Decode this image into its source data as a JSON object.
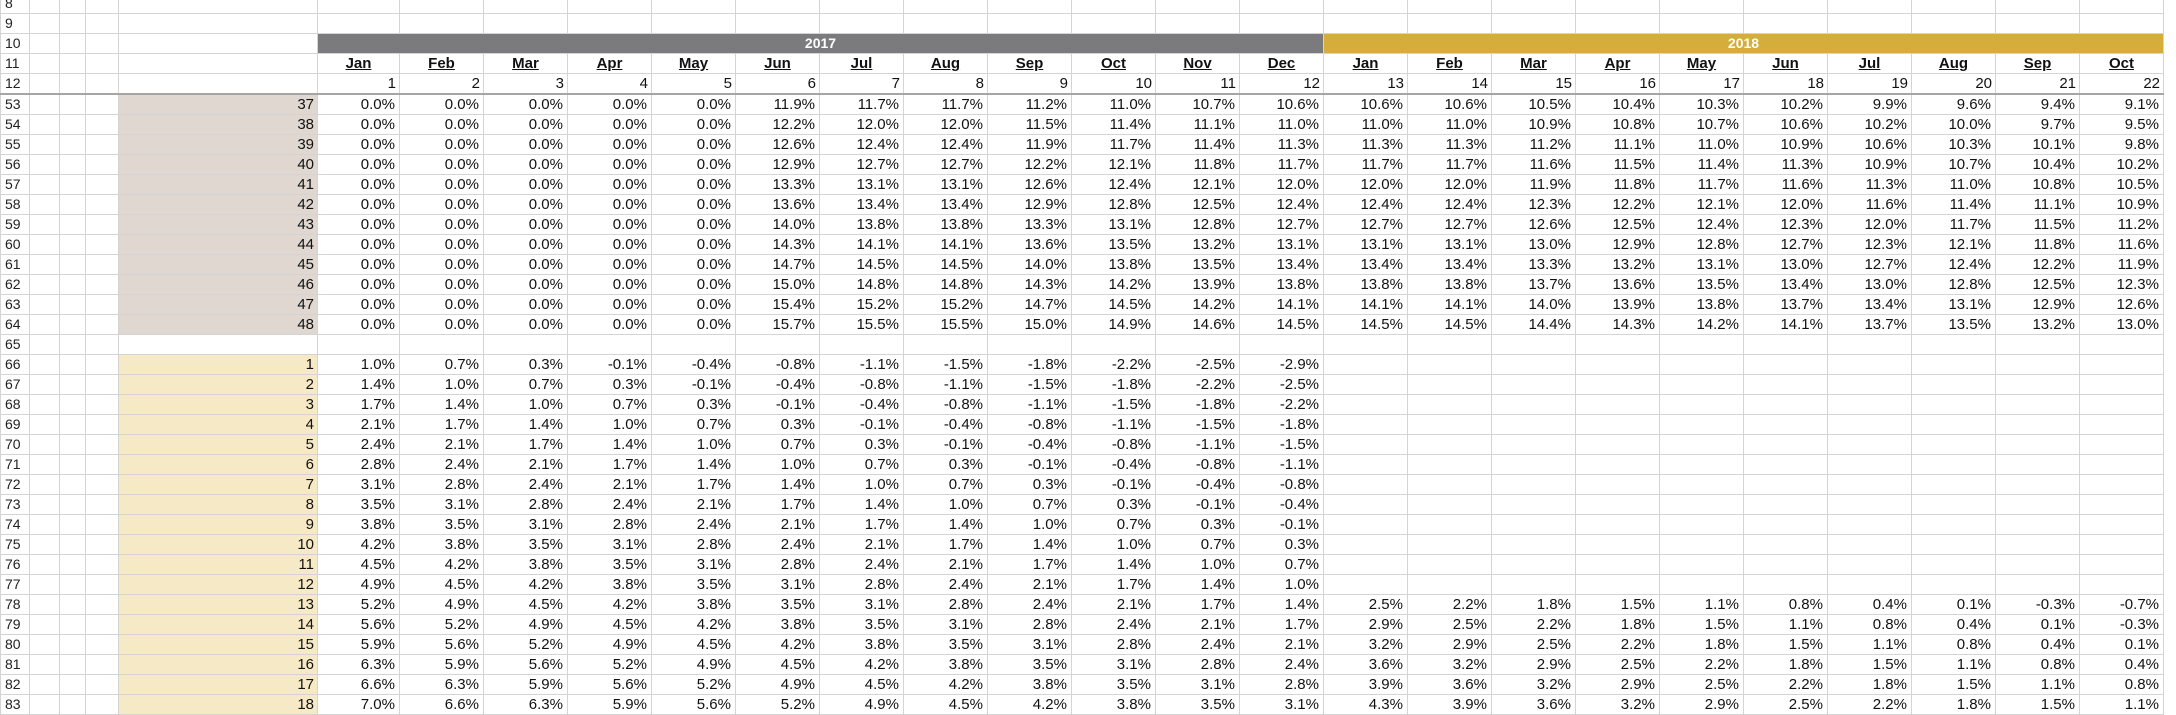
{
  "theme": {
    "header_2017": "#7b7b7d",
    "header_2018": "#d5ad3b",
    "band_a": "#e0d8d0",
    "band_b": "#f6eac6"
  },
  "row_numbers": {
    "top": [
      "8",
      "9",
      "10",
      "11",
      "12"
    ],
    "body": [
      "53",
      "54",
      "55",
      "56",
      "57",
      "58",
      "59",
      "60",
      "61",
      "62",
      "63",
      "64",
      "65",
      "66",
      "67",
      "68",
      "69",
      "70",
      "71",
      "72",
      "73",
      "74",
      "75",
      "76",
      "77",
      "78",
      "79",
      "80",
      "81",
      "82",
      "83"
    ]
  },
  "years": [
    "2017",
    "2018"
  ],
  "months": [
    "Jan",
    "Feb",
    "Mar",
    "Apr",
    "May",
    "Jun",
    "Jul",
    "Aug",
    "Sep",
    "Oct",
    "Nov",
    "Dec",
    "Jan",
    "Feb",
    "Mar",
    "Apr",
    "May",
    "Jun",
    "Jul",
    "Aug",
    "Sep",
    "Oct"
  ],
  "month_numbers": [
    "1",
    "2",
    "3",
    "4",
    "5",
    "6",
    "7",
    "8",
    "9",
    "10",
    "11",
    "12",
    "13",
    "14",
    "15",
    "16",
    "17",
    "18",
    "19",
    "20",
    "21",
    "22"
  ],
  "rows": [
    {
      "label": "37",
      "values": [
        "0.0%",
        "0.0%",
        "0.0%",
        "0.0%",
        "0.0%",
        "11.9%",
        "11.7%",
        "11.7%",
        "11.2%",
        "11.0%",
        "10.7%",
        "10.6%",
        "10.6%",
        "10.6%",
        "10.5%",
        "10.4%",
        "10.3%",
        "10.2%",
        "9.9%",
        "9.6%",
        "9.4%",
        "9.1%"
      ]
    },
    {
      "label": "38",
      "values": [
        "0.0%",
        "0.0%",
        "0.0%",
        "0.0%",
        "0.0%",
        "12.2%",
        "12.0%",
        "12.0%",
        "11.5%",
        "11.4%",
        "11.1%",
        "11.0%",
        "11.0%",
        "11.0%",
        "10.9%",
        "10.8%",
        "10.7%",
        "10.6%",
        "10.2%",
        "10.0%",
        "9.7%",
        "9.5%"
      ]
    },
    {
      "label": "39",
      "values": [
        "0.0%",
        "0.0%",
        "0.0%",
        "0.0%",
        "0.0%",
        "12.6%",
        "12.4%",
        "12.4%",
        "11.9%",
        "11.7%",
        "11.4%",
        "11.3%",
        "11.3%",
        "11.3%",
        "11.2%",
        "11.1%",
        "11.0%",
        "10.9%",
        "10.6%",
        "10.3%",
        "10.1%",
        "9.8%"
      ]
    },
    {
      "label": "40",
      "values": [
        "0.0%",
        "0.0%",
        "0.0%",
        "0.0%",
        "0.0%",
        "12.9%",
        "12.7%",
        "12.7%",
        "12.2%",
        "12.1%",
        "11.8%",
        "11.7%",
        "11.7%",
        "11.7%",
        "11.6%",
        "11.5%",
        "11.4%",
        "11.3%",
        "10.9%",
        "10.7%",
        "10.4%",
        "10.2%"
      ]
    },
    {
      "label": "41",
      "values": [
        "0.0%",
        "0.0%",
        "0.0%",
        "0.0%",
        "0.0%",
        "13.3%",
        "13.1%",
        "13.1%",
        "12.6%",
        "12.4%",
        "12.1%",
        "12.0%",
        "12.0%",
        "12.0%",
        "11.9%",
        "11.8%",
        "11.7%",
        "11.6%",
        "11.3%",
        "11.0%",
        "10.8%",
        "10.5%"
      ]
    },
    {
      "label": "42",
      "values": [
        "0.0%",
        "0.0%",
        "0.0%",
        "0.0%",
        "0.0%",
        "13.6%",
        "13.4%",
        "13.4%",
        "12.9%",
        "12.8%",
        "12.5%",
        "12.4%",
        "12.4%",
        "12.4%",
        "12.3%",
        "12.2%",
        "12.1%",
        "12.0%",
        "11.6%",
        "11.4%",
        "11.1%",
        "10.9%"
      ]
    },
    {
      "label": "43",
      "values": [
        "0.0%",
        "0.0%",
        "0.0%",
        "0.0%",
        "0.0%",
        "14.0%",
        "13.8%",
        "13.8%",
        "13.3%",
        "13.1%",
        "12.8%",
        "12.7%",
        "12.7%",
        "12.7%",
        "12.6%",
        "12.5%",
        "12.4%",
        "12.3%",
        "12.0%",
        "11.7%",
        "11.5%",
        "11.2%"
      ]
    },
    {
      "label": "44",
      "values": [
        "0.0%",
        "0.0%",
        "0.0%",
        "0.0%",
        "0.0%",
        "14.3%",
        "14.1%",
        "14.1%",
        "13.6%",
        "13.5%",
        "13.2%",
        "13.1%",
        "13.1%",
        "13.1%",
        "13.0%",
        "12.9%",
        "12.8%",
        "12.7%",
        "12.3%",
        "12.1%",
        "11.8%",
        "11.6%"
      ]
    },
    {
      "label": "45",
      "values": [
        "0.0%",
        "0.0%",
        "0.0%",
        "0.0%",
        "0.0%",
        "14.7%",
        "14.5%",
        "14.5%",
        "14.0%",
        "13.8%",
        "13.5%",
        "13.4%",
        "13.4%",
        "13.4%",
        "13.3%",
        "13.2%",
        "13.1%",
        "13.0%",
        "12.7%",
        "12.4%",
        "12.2%",
        "11.9%"
      ]
    },
    {
      "label": "46",
      "values": [
        "0.0%",
        "0.0%",
        "0.0%",
        "0.0%",
        "0.0%",
        "15.0%",
        "14.8%",
        "14.8%",
        "14.3%",
        "14.2%",
        "13.9%",
        "13.8%",
        "13.8%",
        "13.8%",
        "13.7%",
        "13.6%",
        "13.5%",
        "13.4%",
        "13.0%",
        "12.8%",
        "12.5%",
        "12.3%"
      ]
    },
    {
      "label": "47",
      "values": [
        "0.0%",
        "0.0%",
        "0.0%",
        "0.0%",
        "0.0%",
        "15.4%",
        "15.2%",
        "15.2%",
        "14.7%",
        "14.5%",
        "14.2%",
        "14.1%",
        "14.1%",
        "14.1%",
        "14.0%",
        "13.9%",
        "13.8%",
        "13.7%",
        "13.4%",
        "13.1%",
        "12.9%",
        "12.6%"
      ]
    },
    {
      "label": "48",
      "values": [
        "0.0%",
        "0.0%",
        "0.0%",
        "0.0%",
        "0.0%",
        "15.7%",
        "15.5%",
        "15.5%",
        "15.0%",
        "14.9%",
        "14.6%",
        "14.5%",
        "14.5%",
        "14.5%",
        "14.4%",
        "14.3%",
        "14.2%",
        "14.1%",
        "13.7%",
        "13.5%",
        "13.2%",
        "13.0%"
      ]
    },
    {
      "label": "",
      "values": [
        "",
        "",
        "",
        "",
        "",
        "",
        "",
        "",
        "",
        "",
        "",
        "",
        "",
        "",
        "",
        "",
        "",
        "",
        "",
        "",
        "",
        ""
      ]
    },
    {
      "label": "1",
      "values": [
        "1.0%",
        "0.7%",
        "0.3%",
        "-0.1%",
        "-0.4%",
        "-0.8%",
        "-1.1%",
        "-1.5%",
        "-1.8%",
        "-2.2%",
        "-2.5%",
        "-2.9%",
        "",
        "",
        "",
        "",
        "",
        "",
        "",
        "",
        "",
        ""
      ]
    },
    {
      "label": "2",
      "values": [
        "1.4%",
        "1.0%",
        "0.7%",
        "0.3%",
        "-0.1%",
        "-0.4%",
        "-0.8%",
        "-1.1%",
        "-1.5%",
        "-1.8%",
        "-2.2%",
        "-2.5%",
        "",
        "",
        "",
        "",
        "",
        "",
        "",
        "",
        "",
        ""
      ]
    },
    {
      "label": "3",
      "values": [
        "1.7%",
        "1.4%",
        "1.0%",
        "0.7%",
        "0.3%",
        "-0.1%",
        "-0.4%",
        "-0.8%",
        "-1.1%",
        "-1.5%",
        "-1.8%",
        "-2.2%",
        "",
        "",
        "",
        "",
        "",
        "",
        "",
        "",
        "",
        ""
      ]
    },
    {
      "label": "4",
      "values": [
        "2.1%",
        "1.7%",
        "1.4%",
        "1.0%",
        "0.7%",
        "0.3%",
        "-0.1%",
        "-0.4%",
        "-0.8%",
        "-1.1%",
        "-1.5%",
        "-1.8%",
        "",
        "",
        "",
        "",
        "",
        "",
        "",
        "",
        "",
        ""
      ]
    },
    {
      "label": "5",
      "values": [
        "2.4%",
        "2.1%",
        "1.7%",
        "1.4%",
        "1.0%",
        "0.7%",
        "0.3%",
        "-0.1%",
        "-0.4%",
        "-0.8%",
        "-1.1%",
        "-1.5%",
        "",
        "",
        "",
        "",
        "",
        "",
        "",
        "",
        "",
        ""
      ]
    },
    {
      "label": "6",
      "values": [
        "2.8%",
        "2.4%",
        "2.1%",
        "1.7%",
        "1.4%",
        "1.0%",
        "0.7%",
        "0.3%",
        "-0.1%",
        "-0.4%",
        "-0.8%",
        "-1.1%",
        "",
        "",
        "",
        "",
        "",
        "",
        "",
        "",
        "",
        ""
      ]
    },
    {
      "label": "7",
      "values": [
        "3.1%",
        "2.8%",
        "2.4%",
        "2.1%",
        "1.7%",
        "1.4%",
        "1.0%",
        "0.7%",
        "0.3%",
        "-0.1%",
        "-0.4%",
        "-0.8%",
        "",
        "",
        "",
        "",
        "",
        "",
        "",
        "",
        "",
        ""
      ]
    },
    {
      "label": "8",
      "values": [
        "3.5%",
        "3.1%",
        "2.8%",
        "2.4%",
        "2.1%",
        "1.7%",
        "1.4%",
        "1.0%",
        "0.7%",
        "0.3%",
        "-0.1%",
        "-0.4%",
        "",
        "",
        "",
        "",
        "",
        "",
        "",
        "",
        "",
        ""
      ]
    },
    {
      "label": "9",
      "values": [
        "3.8%",
        "3.5%",
        "3.1%",
        "2.8%",
        "2.4%",
        "2.1%",
        "1.7%",
        "1.4%",
        "1.0%",
        "0.7%",
        "0.3%",
        "-0.1%",
        "",
        "",
        "",
        "",
        "",
        "",
        "",
        "",
        "",
        ""
      ]
    },
    {
      "label": "10",
      "values": [
        "4.2%",
        "3.8%",
        "3.5%",
        "3.1%",
        "2.8%",
        "2.4%",
        "2.1%",
        "1.7%",
        "1.4%",
        "1.0%",
        "0.7%",
        "0.3%",
        "",
        "",
        "",
        "",
        "",
        "",
        "",
        "",
        "",
        ""
      ]
    },
    {
      "label": "11",
      "values": [
        "4.5%",
        "4.2%",
        "3.8%",
        "3.5%",
        "3.1%",
        "2.8%",
        "2.4%",
        "2.1%",
        "1.7%",
        "1.4%",
        "1.0%",
        "0.7%",
        "",
        "",
        "",
        "",
        "",
        "",
        "",
        "",
        "",
        ""
      ]
    },
    {
      "label": "12",
      "values": [
        "4.9%",
        "4.5%",
        "4.2%",
        "3.8%",
        "3.5%",
        "3.1%",
        "2.8%",
        "2.4%",
        "2.1%",
        "1.7%",
        "1.4%",
        "1.0%",
        "",
        "",
        "",
        "",
        "",
        "",
        "",
        "",
        "",
        ""
      ]
    },
    {
      "label": "13",
      "values": [
        "5.2%",
        "4.9%",
        "4.5%",
        "4.2%",
        "3.8%",
        "3.5%",
        "3.1%",
        "2.8%",
        "2.4%",
        "2.1%",
        "1.7%",
        "1.4%",
        "2.5%",
        "2.2%",
        "1.8%",
        "1.5%",
        "1.1%",
        "0.8%",
        "0.4%",
        "0.1%",
        "-0.3%",
        "-0.7%"
      ]
    },
    {
      "label": "14",
      "values": [
        "5.6%",
        "5.2%",
        "4.9%",
        "4.5%",
        "4.2%",
        "3.8%",
        "3.5%",
        "3.1%",
        "2.8%",
        "2.4%",
        "2.1%",
        "1.7%",
        "2.9%",
        "2.5%",
        "2.2%",
        "1.8%",
        "1.5%",
        "1.1%",
        "0.8%",
        "0.4%",
        "0.1%",
        "-0.3%"
      ]
    },
    {
      "label": "15",
      "values": [
        "5.9%",
        "5.6%",
        "5.2%",
        "4.9%",
        "4.5%",
        "4.2%",
        "3.8%",
        "3.5%",
        "3.1%",
        "2.8%",
        "2.4%",
        "2.1%",
        "3.2%",
        "2.9%",
        "2.5%",
        "2.2%",
        "1.8%",
        "1.5%",
        "1.1%",
        "0.8%",
        "0.4%",
        "0.1%"
      ]
    },
    {
      "label": "16",
      "values": [
        "6.3%",
        "5.9%",
        "5.6%",
        "5.2%",
        "4.9%",
        "4.5%",
        "4.2%",
        "3.8%",
        "3.5%",
        "3.1%",
        "2.8%",
        "2.4%",
        "3.6%",
        "3.2%",
        "2.9%",
        "2.5%",
        "2.2%",
        "1.8%",
        "1.5%",
        "1.1%",
        "0.8%",
        "0.4%"
      ]
    },
    {
      "label": "17",
      "values": [
        "6.6%",
        "6.3%",
        "5.9%",
        "5.6%",
        "5.2%",
        "4.9%",
        "4.5%",
        "4.2%",
        "3.8%",
        "3.5%",
        "3.1%",
        "2.8%",
        "3.9%",
        "3.6%",
        "3.2%",
        "2.9%",
        "2.5%",
        "2.2%",
        "1.8%",
        "1.5%",
        "1.1%",
        "0.8%"
      ]
    },
    {
      "label": "18",
      "values": [
        "7.0%",
        "6.6%",
        "6.3%",
        "5.9%",
        "5.6%",
        "5.2%",
        "4.9%",
        "4.5%",
        "4.2%",
        "3.8%",
        "3.5%",
        "3.1%",
        "4.3%",
        "3.9%",
        "3.6%",
        "3.2%",
        "2.9%",
        "2.5%",
        "2.2%",
        "1.8%",
        "1.5%",
        "1.1%"
      ]
    }
  ]
}
